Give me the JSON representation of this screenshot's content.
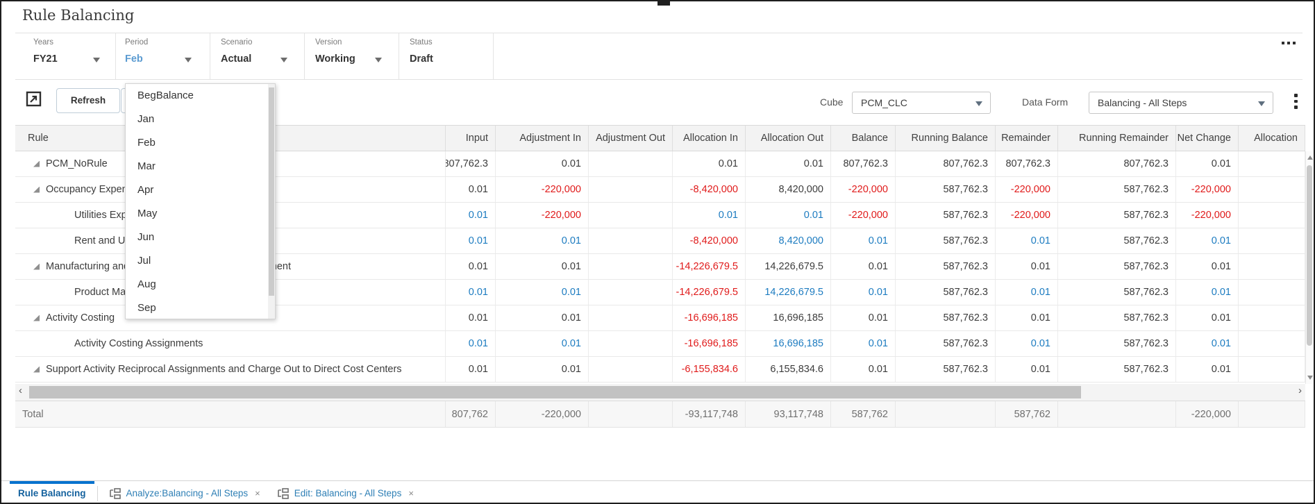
{
  "title": "Rule Balancing",
  "pov": {
    "fields": [
      {
        "label": "Years",
        "value": "FY21",
        "dropdown": true,
        "value_color": "dark"
      },
      {
        "label": "Period",
        "value": "Feb",
        "dropdown": true,
        "value_color": "blue"
      },
      {
        "label": "Scenario",
        "value": "Actual",
        "dropdown": true,
        "value_color": "dark"
      },
      {
        "label": "Version",
        "value": "Working",
        "dropdown": true,
        "value_color": "dark"
      },
      {
        "label": "Status",
        "value": "Draft",
        "dropdown": false,
        "value_color": "dark"
      }
    ],
    "overflow_icon": "ellipsis-icon"
  },
  "period_dropdown": {
    "items": [
      "BegBalance",
      "Jan",
      "Feb",
      "Mar",
      "Apr",
      "May",
      "Jun",
      "Jul",
      "Aug",
      "Sep"
    ],
    "selected": "Feb"
  },
  "toolbar": {
    "popout_icon": "open-in-window-icon",
    "refresh_label": "Refresh",
    "cube_label": "Cube",
    "cube_value": "PCM_CLC",
    "dataform_label": "Data Form",
    "dataform_value": "Balancing - All Steps",
    "menu_icon": "kebab-menu-icon"
  },
  "table": {
    "columns": [
      "Rule",
      "Input",
      "Adjustment In",
      "Adjustment Out",
      "Allocation In",
      "Allocation Out",
      "Balance",
      "Running Balance",
      "Remainder",
      "Running Remainder",
      "Net Change",
      "Allocation"
    ],
    "rows": [
      {
        "label": "PCM_NoRule",
        "indent": 1,
        "expandable": true,
        "cells": [
          {
            "v": "807,762.3",
            "c": "k"
          },
          {
            "v": "0.01",
            "c": "k"
          },
          {
            "v": "",
            "c": "k"
          },
          {
            "v": "0.01",
            "c": "k"
          },
          {
            "v": "0.01",
            "c": "k"
          },
          {
            "v": "807,762.3",
            "c": "k"
          },
          {
            "v": "807,762.3",
            "c": "k"
          },
          {
            "v": "807,762.3",
            "c": "k"
          },
          {
            "v": "807,762.3",
            "c": "k"
          },
          {
            "v": "0.01",
            "c": "k"
          },
          {
            "v": "",
            "c": "k"
          }
        ]
      },
      {
        "label": "Occupancy Expense Adjustment",
        "indent": 1,
        "expandable": true,
        "cells": [
          {
            "v": "0.01",
            "c": "k"
          },
          {
            "v": "-220,000",
            "c": "r"
          },
          {
            "v": "",
            "c": "k"
          },
          {
            "v": "-8,420,000",
            "c": "r"
          },
          {
            "v": "8,420,000",
            "c": "k"
          },
          {
            "v": "-220,000",
            "c": "r"
          },
          {
            "v": "587,762.3",
            "c": "k"
          },
          {
            "v": "-220,000",
            "c": "r"
          },
          {
            "v": "587,762.3",
            "c": "k"
          },
          {
            "v": "-220,000",
            "c": "r"
          },
          {
            "v": "",
            "c": "k"
          }
        ]
      },
      {
        "label": "Utilities Expense Adjustment",
        "indent": 2,
        "expandable": false,
        "cells": [
          {
            "v": "0.01",
            "c": "b"
          },
          {
            "v": "-220,000",
            "c": "r"
          },
          {
            "v": "",
            "c": "k"
          },
          {
            "v": "0.01",
            "c": "b"
          },
          {
            "v": "0.01",
            "c": "b"
          },
          {
            "v": "-220,000",
            "c": "r"
          },
          {
            "v": "587,762.3",
            "c": "k"
          },
          {
            "v": "-220,000",
            "c": "r"
          },
          {
            "v": "587,762.3",
            "c": "k"
          },
          {
            "v": "-220,000",
            "c": "r"
          },
          {
            "v": "",
            "c": "k"
          }
        ]
      },
      {
        "label": "Rent and Utilities Reassignment",
        "indent": 2,
        "expandable": false,
        "cells": [
          {
            "v": "0.01",
            "c": "b"
          },
          {
            "v": "0.01",
            "c": "b"
          },
          {
            "v": "",
            "c": "k"
          },
          {
            "v": "-8,420,000",
            "c": "r"
          },
          {
            "v": "8,420,000",
            "c": "b"
          },
          {
            "v": "0.01",
            "c": "b"
          },
          {
            "v": "587,762.3",
            "c": "k"
          },
          {
            "v": "0.01",
            "c": "b"
          },
          {
            "v": "587,762.3",
            "c": "k"
          },
          {
            "v": "0.01",
            "c": "b"
          },
          {
            "v": "",
            "c": "k"
          }
        ]
      },
      {
        "label": "Manufacturing and Support Cost Center Reassignment",
        "indent": 1,
        "expandable": true,
        "cells": [
          {
            "v": "0.01",
            "c": "k"
          },
          {
            "v": "0.01",
            "c": "k"
          },
          {
            "v": "",
            "c": "k"
          },
          {
            "v": "-14,226,679.5",
            "c": "r"
          },
          {
            "v": "14,226,679.5",
            "c": "k"
          },
          {
            "v": "0.01",
            "c": "k"
          },
          {
            "v": "587,762.3",
            "c": "k"
          },
          {
            "v": "0.01",
            "c": "k"
          },
          {
            "v": "587,762.3",
            "c": "k"
          },
          {
            "v": "0.01",
            "c": "k"
          },
          {
            "v": "",
            "c": "k"
          }
        ]
      },
      {
        "label": "Product Manufacturing Assignments",
        "indent": 2,
        "expandable": false,
        "cells": [
          {
            "v": "0.01",
            "c": "b"
          },
          {
            "v": "0.01",
            "c": "b"
          },
          {
            "v": "",
            "c": "k"
          },
          {
            "v": "-14,226,679.5",
            "c": "r"
          },
          {
            "v": "14,226,679.5",
            "c": "b"
          },
          {
            "v": "0.01",
            "c": "b"
          },
          {
            "v": "587,762.3",
            "c": "k"
          },
          {
            "v": "0.01",
            "c": "b"
          },
          {
            "v": "587,762.3",
            "c": "k"
          },
          {
            "v": "0.01",
            "c": "b"
          },
          {
            "v": "",
            "c": "k"
          }
        ]
      },
      {
        "label": "Activity Costing",
        "indent": 1,
        "expandable": true,
        "cells": [
          {
            "v": "0.01",
            "c": "k"
          },
          {
            "v": "0.01",
            "c": "k"
          },
          {
            "v": "",
            "c": "k"
          },
          {
            "v": "-16,696,185",
            "c": "r"
          },
          {
            "v": "16,696,185",
            "c": "k"
          },
          {
            "v": "0.01",
            "c": "k"
          },
          {
            "v": "587,762.3",
            "c": "k"
          },
          {
            "v": "0.01",
            "c": "k"
          },
          {
            "v": "587,762.3",
            "c": "k"
          },
          {
            "v": "0.01",
            "c": "k"
          },
          {
            "v": "",
            "c": "k"
          }
        ]
      },
      {
        "label": "Activity Costing Assignments",
        "indent": 2,
        "expandable": false,
        "cells": [
          {
            "v": "0.01",
            "c": "b"
          },
          {
            "v": "0.01",
            "c": "b"
          },
          {
            "v": "",
            "c": "k"
          },
          {
            "v": "-16,696,185",
            "c": "r"
          },
          {
            "v": "16,696,185",
            "c": "b"
          },
          {
            "v": "0.01",
            "c": "b"
          },
          {
            "v": "587,762.3",
            "c": "k"
          },
          {
            "v": "0.01",
            "c": "b"
          },
          {
            "v": "587,762.3",
            "c": "k"
          },
          {
            "v": "0.01",
            "c": "b"
          },
          {
            "v": "",
            "c": "k"
          }
        ]
      },
      {
        "label": "Support Activity Reciprocal Assignments and Charge Out to Direct Cost Centers",
        "indent": 1,
        "expandable": true,
        "cells": [
          {
            "v": "0.01",
            "c": "k"
          },
          {
            "v": "0.01",
            "c": "k"
          },
          {
            "v": "",
            "c": "k"
          },
          {
            "v": "-6,155,834.6",
            "c": "r"
          },
          {
            "v": "6,155,834.6",
            "c": "k"
          },
          {
            "v": "0.01",
            "c": "k"
          },
          {
            "v": "587,762.3",
            "c": "k"
          },
          {
            "v": "0.01",
            "c": "k"
          },
          {
            "v": "587,762.3",
            "c": "k"
          },
          {
            "v": "0.01",
            "c": "k"
          },
          {
            "v": "",
            "c": "k"
          }
        ]
      }
    ],
    "total": {
      "label": "Total",
      "cells": [
        {
          "v": "807,762",
          "c": "g"
        },
        {
          "v": "-220,000",
          "c": "r"
        },
        {
          "v": "",
          "c": "g"
        },
        {
          "v": "-93,117,748",
          "c": "r"
        },
        {
          "v": "93,117,748",
          "c": "g"
        },
        {
          "v": "587,762",
          "c": "g"
        },
        {
          "v": "",
          "c": "g"
        },
        {
          "v": "587,762",
          "c": "g"
        },
        {
          "v": "",
          "c": "g"
        },
        {
          "v": "-220,000",
          "c": "r"
        },
        {
          "v": "",
          "c": "g"
        }
      ]
    }
  },
  "tabs": [
    {
      "label": "Rule Balancing",
      "active": true,
      "closable": false,
      "icon": null
    },
    {
      "label": "Analyze:Balancing - All Steps",
      "active": false,
      "closable": true,
      "icon": "form-hierarchy-icon"
    },
    {
      "label": "Edit: Balancing - All Steps",
      "active": false,
      "closable": true,
      "icon": "form-hierarchy-icon"
    }
  ],
  "colors": {
    "accent_blue": "#0572ce",
    "link_blue": "#2e7fb5",
    "value_blue": "#1c7bc0",
    "negative_red": "#e01a1a",
    "header_bg": "#f3f3f3"
  }
}
